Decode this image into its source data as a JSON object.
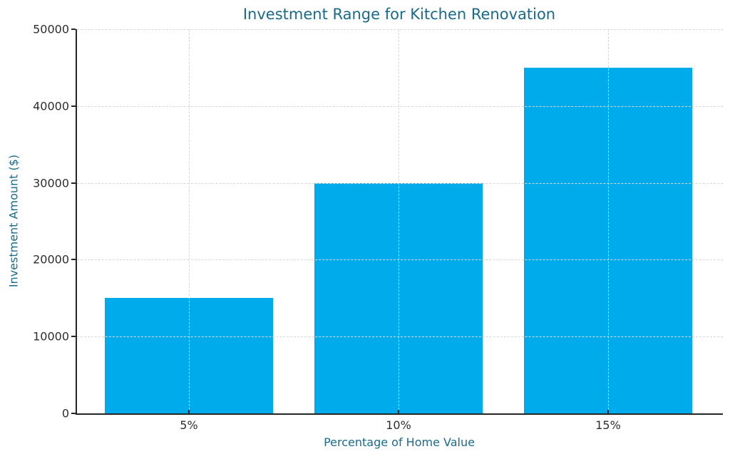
{
  "chart_data": {
    "type": "bar",
    "title": "Investment Range for Kitchen Renovation",
    "xlabel": "Percentage of Home Value",
    "ylabel": "Investment Amount ($)",
    "categories": [
      "5%",
      "10%",
      "15%"
    ],
    "values": [
      15000,
      30000,
      45000
    ],
    "ylim": [
      0,
      50000
    ],
    "yticks": [
      0,
      10000,
      20000,
      30000,
      40000,
      50000
    ],
    "ytick_labels": [
      "0",
      "10000",
      "20000",
      "30000",
      "40000",
      "50000"
    ],
    "grid": "dashed, horizontal and vertical, drawn above bars",
    "legend": "none",
    "colors": {
      "bar": "#00ABEB",
      "title": "#1A6A8C",
      "axis_label": "#1A6A8C",
      "tick_label": "#2E2E2E",
      "grid": "#D7D7D7",
      "spine": "#262626",
      "background": "#FFFFFF"
    },
    "layout": {
      "bar_width_frac": 0.26,
      "first_center_frac": 0.1733,
      "center_step_frac": 0.3245
    }
  }
}
